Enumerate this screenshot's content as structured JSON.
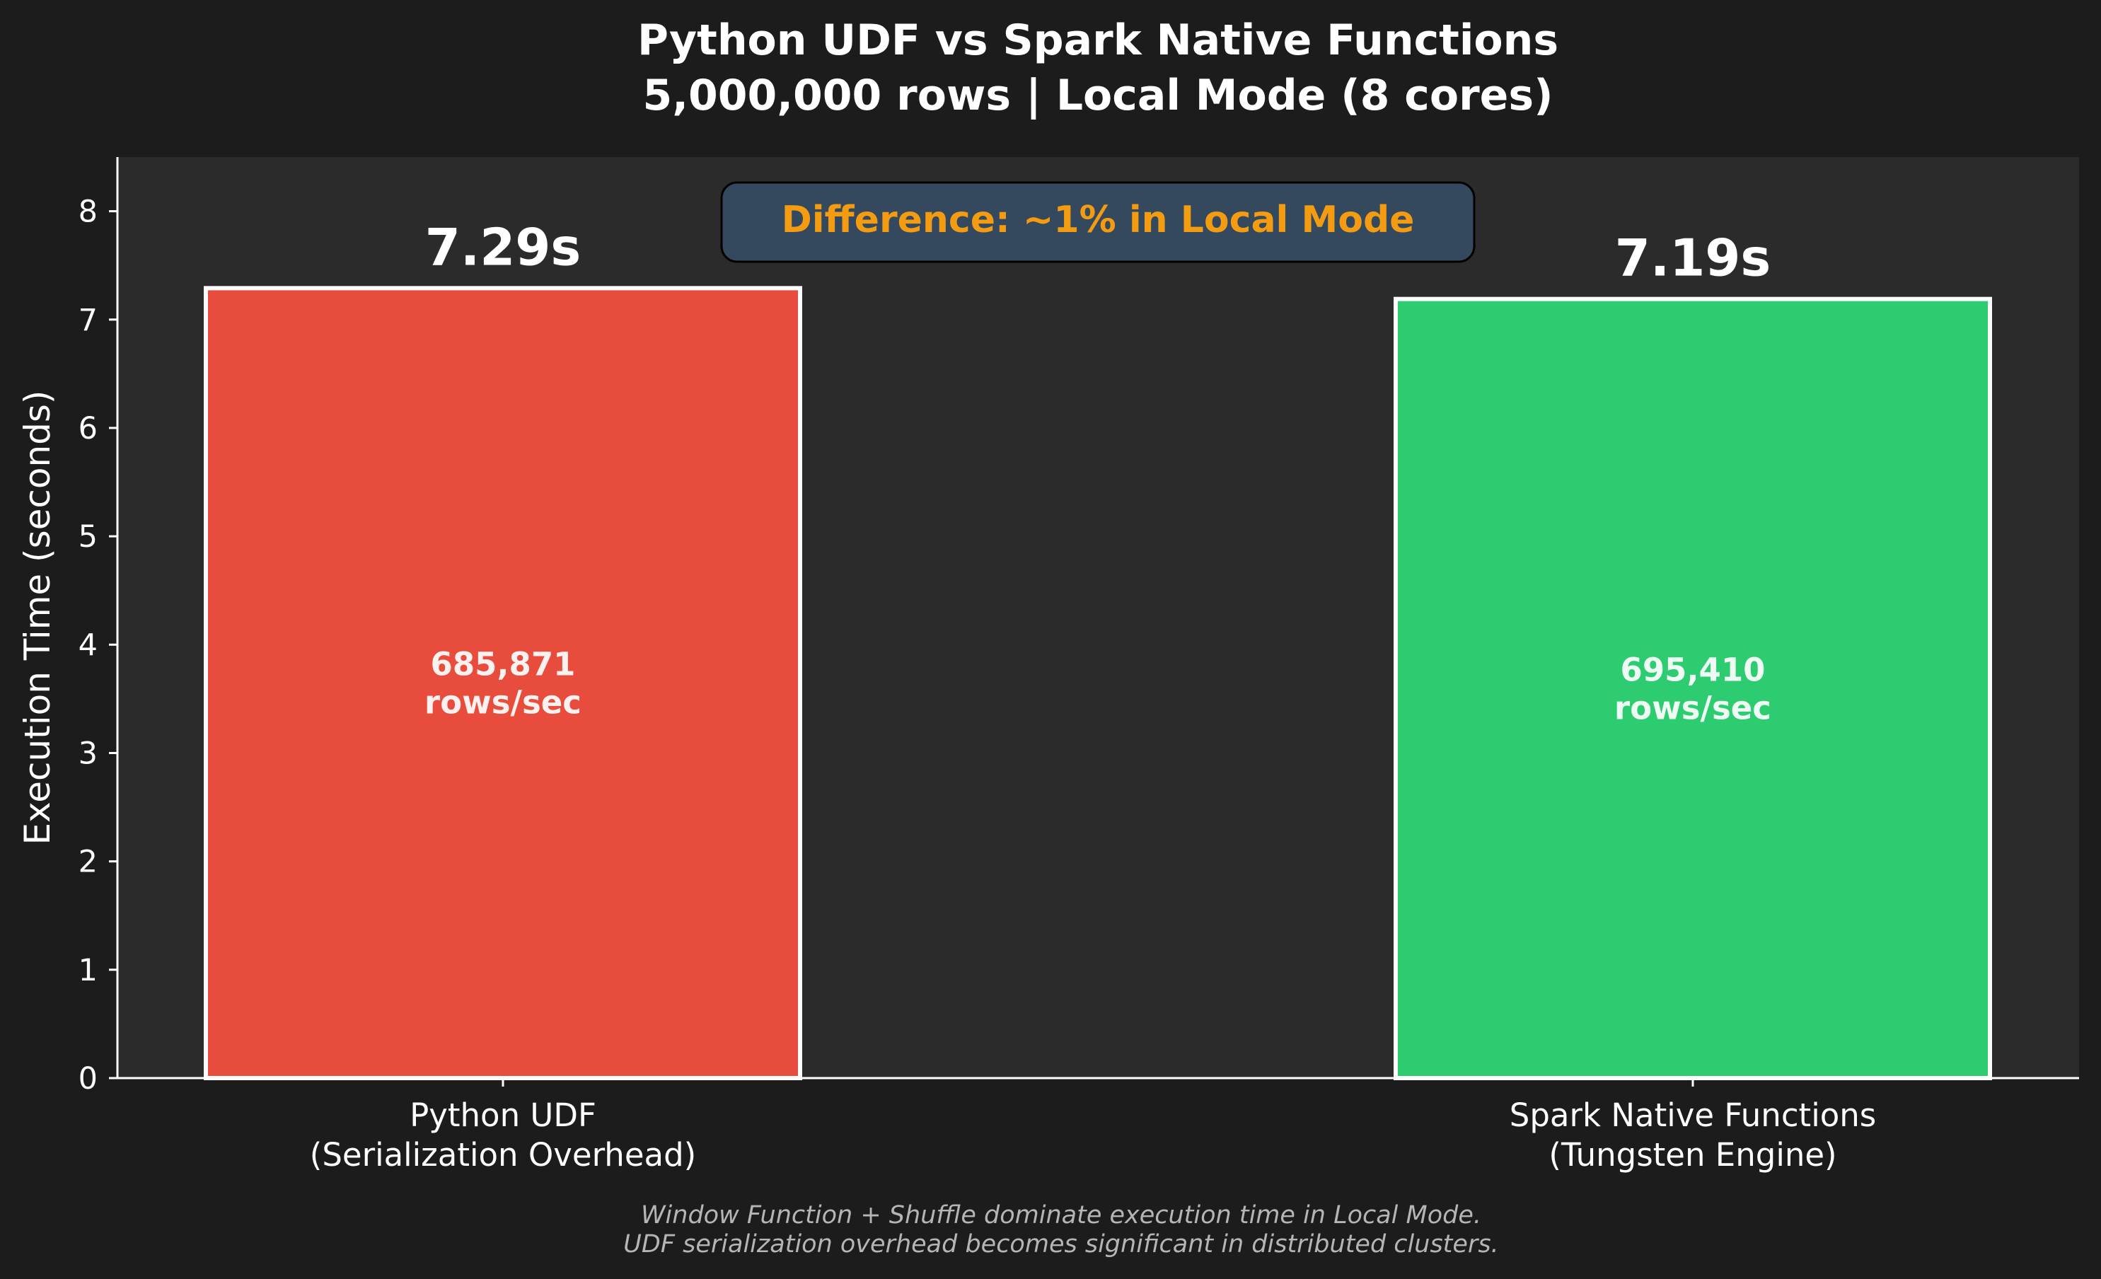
{
  "title_line1": "Python UDF vs Spark Native Functions",
  "title_line2": "5,000,000 rows | Local Mode (8 cores)",
  "annotation": "Difference: ~1% in Local Mode",
  "footnote_line1": "Window Function + Shuffle dominate execution time in Local Mode.",
  "footnote_line2": "UDF serialization overhead becomes significant in distributed clusters.",
  "colors": {
    "background": "#1c1c1c",
    "plot_background": "#2b2b2b",
    "udf_bar": "#e74c3c",
    "native_bar": "#2ecc71",
    "annotation_text": "#f39c12",
    "annotation_box": "#34495e"
  },
  "chart_data": {
    "type": "bar",
    "ylabel": "Execution Time (seconds)",
    "xlabel": "",
    "ylim": [
      0,
      8.5
    ],
    "yticks": [
      "0",
      "1",
      "2",
      "3",
      "4",
      "5",
      "6",
      "7",
      "8"
    ],
    "grid": false,
    "categories": [
      {
        "line1": "Python UDF",
        "line2": "(Serialization Overhead)"
      },
      {
        "line1": "Spark Native Functions",
        "line2": "(Tungsten Engine)"
      }
    ],
    "values": [
      7.29,
      7.19
    ],
    "value_labels": [
      "7.29s",
      "7.19s"
    ],
    "inner_labels": [
      {
        "line1": "685,871",
        "line2": "rows/sec"
      },
      {
        "line1": "695,410",
        "line2": "rows/sec"
      }
    ]
  }
}
